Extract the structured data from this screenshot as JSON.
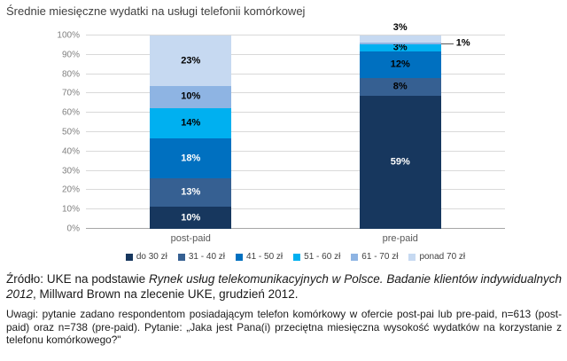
{
  "title": "Średnie miesięczne wydatki na usługi telefonii komórkowej",
  "chart_data": {
    "type": "bar",
    "stacked": true,
    "percent_stacked": true,
    "title": "Średnie miesięczne wydatki na usługi telefonii komórkowej",
    "categories": [
      "post-paid",
      "pre-paid"
    ],
    "series": [
      {
        "name": "do 30 zł",
        "color": "#17375E",
        "values": [
          10,
          59
        ],
        "label_colors": [
          "#FFFFFF",
          "#FFFFFF"
        ]
      },
      {
        "name": "31 - 40 zł",
        "color": "#366092",
        "values": [
          13,
          8
        ],
        "label_colors": [
          "#FFFFFF",
          "#000000"
        ]
      },
      {
        "name": "41 - 50 zł",
        "color": "#0070C0",
        "values": [
          18,
          12
        ],
        "label_colors": [
          "#FFFFFF",
          "#000000"
        ]
      },
      {
        "name": "51 - 60 zł",
        "color": "#00B0F0",
        "values": [
          14,
          3
        ],
        "label_colors": [
          "#000000",
          "#000000"
        ]
      },
      {
        "name": "61 - 70 zł",
        "color": "#8EB4E3",
        "values": [
          10,
          1
        ],
        "label_colors": [
          "#000000",
          "#000000"
        ]
      },
      {
        "name": "ponad 70 zł",
        "color": "#C6D9F1",
        "values": [
          23,
          3
        ],
        "label_colors": [
          "#000000",
          "#000000"
        ]
      }
    ],
    "label_overrides": [
      {
        "category": "pre-paid",
        "series": "61 - 70 zł",
        "position": "right"
      },
      {
        "category": "pre-paid",
        "series": "ponad 70 zł",
        "position": "above"
      }
    ],
    "y_ticks": [
      "0%",
      "10%",
      "20%",
      "30%",
      "40%",
      "50%",
      "60%",
      "70%",
      "80%",
      "90%",
      "100%"
    ],
    "ylim": [
      0,
      100
    ],
    "grid": true,
    "legend_position": "bottom"
  },
  "source": {
    "prefix": "Źródło: UKE na podstawie ",
    "italic": "Rynek usług telekomunikacyjnych w Polsce. Badanie klientów indywidualnych 2012",
    "suffix": ", Millward Brown na zlecenie UKE, grudzień 2012."
  },
  "notes": {
    "text": "Uwagi: pytanie zadano respondentom posiadającym telefon komórkowy w ofercie post-pai lub pre-paid, n=613 (post-paid) oraz n=738 (pre-paid). Pytanie: „Jaka jest Pana(i) przeciętna miesięczna wysokość wydatków na korzystanie z telefonu komórkowego?\""
  }
}
